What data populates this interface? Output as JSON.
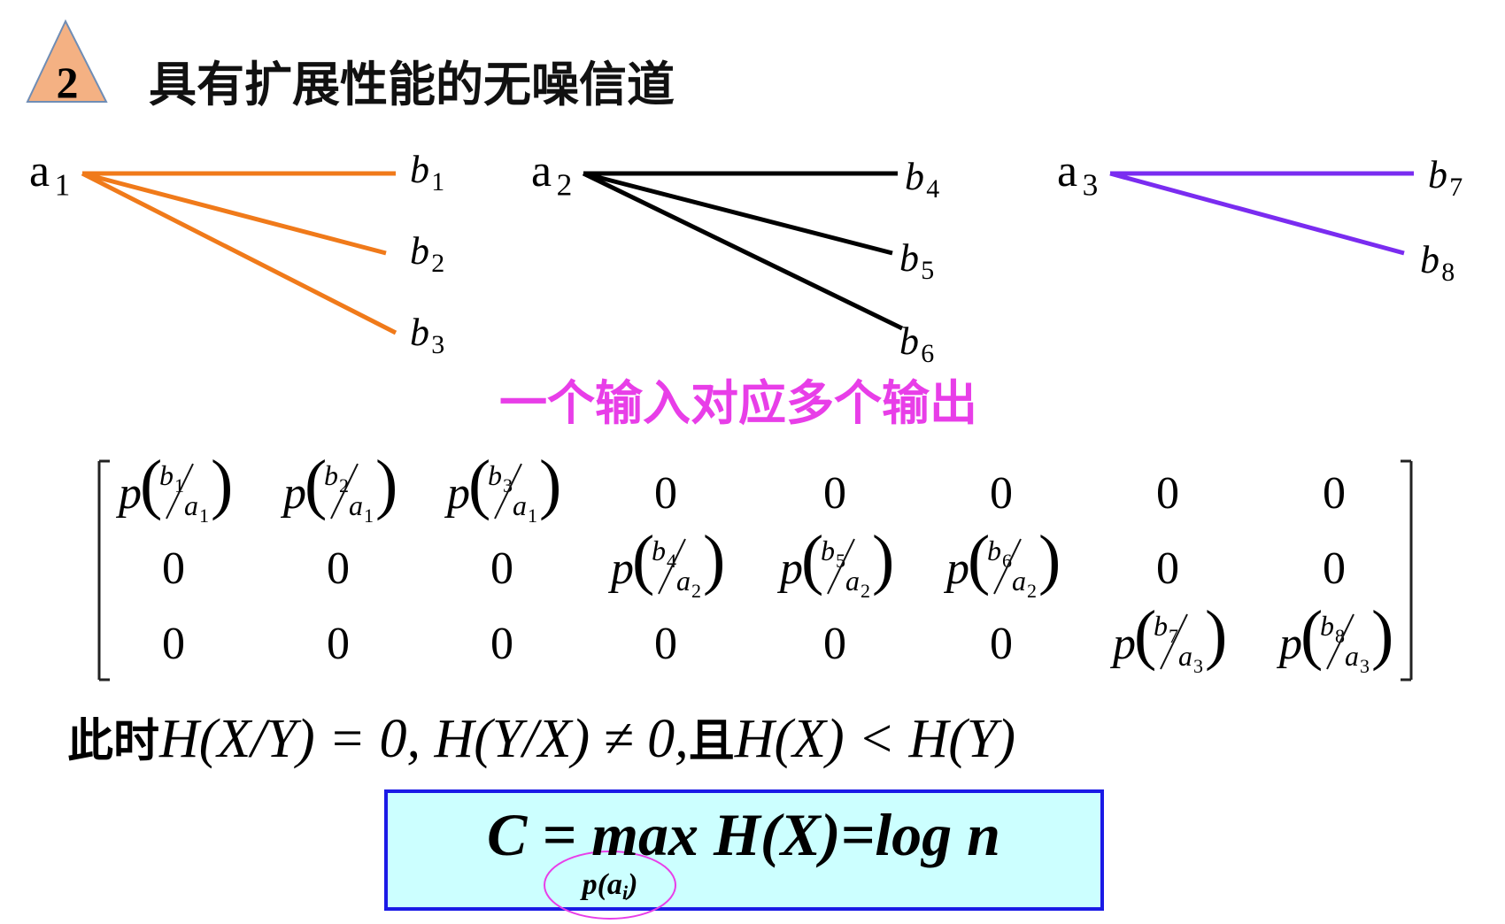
{
  "header": {
    "number": "2",
    "title": "具有扩展性能的无噪信道"
  },
  "diagram": {
    "inputs": [
      {
        "base": "a",
        "sub": "1",
        "outputs": [
          {
            "base": "b",
            "sub": "1"
          },
          {
            "base": "b",
            "sub": "2"
          },
          {
            "base": "b",
            "sub": "3"
          }
        ]
      },
      {
        "base": "a",
        "sub": "2",
        "outputs": [
          {
            "base": "b",
            "sub": "4"
          },
          {
            "base": "b",
            "sub": "5"
          },
          {
            "base": "b",
            "sub": "6"
          }
        ]
      },
      {
        "base": "a",
        "sub": "3",
        "outputs": [
          {
            "base": "b",
            "sub": "7"
          },
          {
            "base": "b",
            "sub": "8"
          }
        ]
      }
    ],
    "caption": "一个输入对应多个输出"
  },
  "matrix": {
    "open": "(",
    "close": ")",
    "rows": [
      [
        {
          "p": "p",
          "b": "b",
          "bs": "1",
          "a": "a",
          "as": "1"
        },
        {
          "p": "p",
          "b": "b",
          "bs": "2",
          "a": "a",
          "as": "1"
        },
        {
          "p": "p",
          "b": "b",
          "bs": "3",
          "a": "a",
          "as": "1"
        },
        "0",
        "0",
        "0",
        "0",
        "0"
      ],
      [
        "0",
        "0",
        "0",
        {
          "p": "p",
          "b": "b",
          "bs": "4",
          "a": "a",
          "as": "2"
        },
        {
          "p": "p",
          "b": "b",
          "bs": "5",
          "a": "a",
          "as": "2"
        },
        {
          "p": "p",
          "b": "b",
          "bs": "6",
          "a": "a",
          "as": "2"
        },
        "0",
        "0"
      ],
      [
        "0",
        "0",
        "0",
        "0",
        "0",
        "0",
        {
          "p": "p",
          "b": "b",
          "bs": "7",
          "a": "a",
          "as": "3"
        },
        {
          "p": "p",
          "b": "b",
          "bs": "8",
          "a": "a",
          "as": "3"
        }
      ]
    ]
  },
  "statement": [
    "此时",
    "H(X/Y) = 0, H(Y/X) ≠ 0,",
    "且",
    "H(X) < H(Y)"
  ],
  "formula": {
    "main": "C = max H(X)=log n",
    "under": "p(a",
    "under_sub": "i",
    "under_close": ")"
  }
}
